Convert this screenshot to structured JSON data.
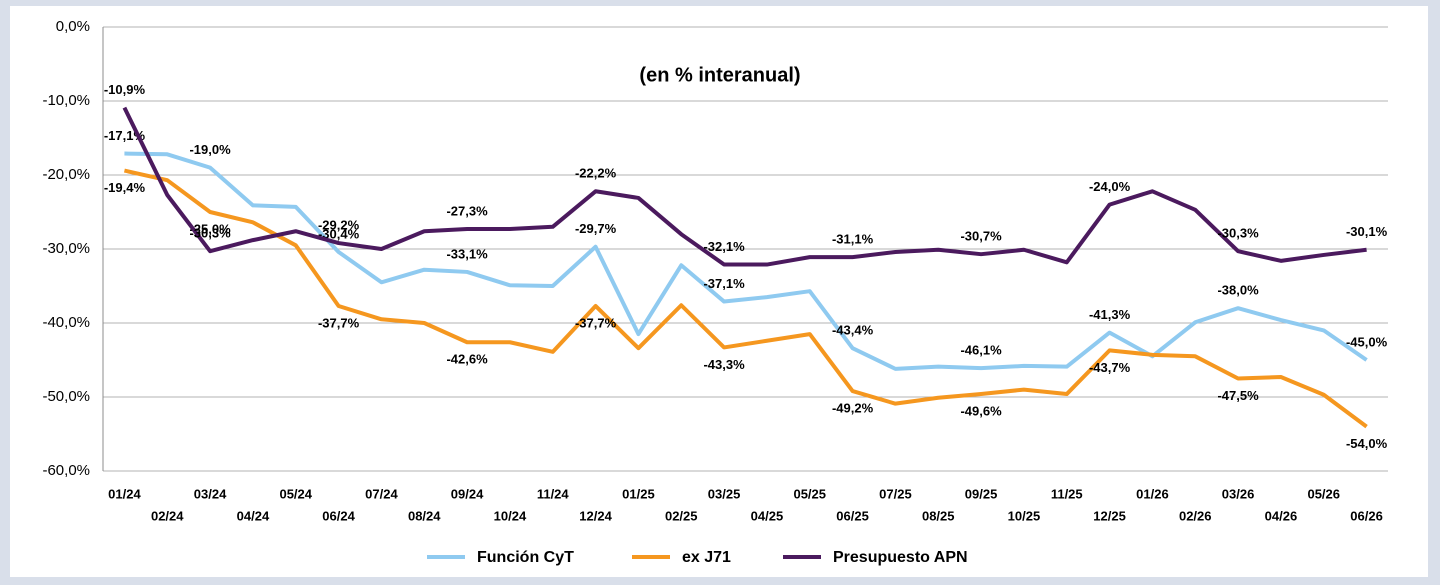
{
  "chart_data": {
    "type": "line",
    "title": "(en % interanual)",
    "categories": [
      "01/24",
      "02/24",
      "03/24",
      "04/24",
      "05/24",
      "06/24",
      "07/24",
      "08/24",
      "09/24",
      "10/24",
      "11/24",
      "12/24",
      "01/25",
      "02/25",
      "03/25",
      "04/25",
      "05/25",
      "06/25",
      "07/25",
      "08/25",
      "09/25",
      "10/25",
      "11/25",
      "12/25",
      "01/26",
      "02/26",
      "03/26",
      "04/26",
      "05/26",
      "06/26"
    ],
    "series": [
      {
        "name": "Función CyT",
        "color": "#8fcaf0",
        "values": [
          -17.1,
          -17.2,
          -19.0,
          -24.1,
          -24.3,
          -30.4,
          -34.5,
          -32.8,
          -33.1,
          -34.9,
          -35.0,
          -29.7,
          -41.5,
          -32.2,
          -37.1,
          -36.5,
          -35.7,
          -43.4,
          -46.2,
          -45.9,
          -46.1,
          -45.8,
          -45.9,
          -41.3,
          -44.5,
          -39.9,
          -38.0,
          -39.6,
          -41.0,
          -45.0
        ],
        "value_labels": [
          "-17,1%",
          null,
          "-19,0%",
          null,
          null,
          "-30,4%",
          null,
          null,
          "-33,1%",
          null,
          null,
          "-29,7%",
          null,
          null,
          "-37,1%",
          null,
          null,
          "-43,4%",
          null,
          null,
          "-46,1%",
          null,
          null,
          "-41,3%",
          null,
          null,
          "-38,0%",
          null,
          null,
          "-45,0%"
        ]
      },
      {
        "name": "ex J71",
        "color": "#f5971f",
        "values": [
          -19.4,
          -20.7,
          -25.0,
          -26.4,
          -29.5,
          -37.7,
          -39.5,
          -40.0,
          -42.6,
          -42.6,
          -43.9,
          -37.7,
          -43.4,
          -37.6,
          -43.3,
          -42.4,
          -41.5,
          -49.2,
          -50.9,
          -50.1,
          -49.6,
          -49.0,
          -49.6,
          -43.7,
          -44.3,
          -44.5,
          -47.5,
          -47.3,
          -49.7,
          -54.0
        ],
        "value_labels": [
          "-19,4%",
          null,
          "-25,0%",
          null,
          null,
          "-37,7%",
          null,
          null,
          "-42,6%",
          null,
          null,
          "-37,7%",
          null,
          null,
          "-43,3%",
          null,
          null,
          "-49,2%",
          null,
          null,
          "-49,6%",
          null,
          null,
          "-43,7%",
          null,
          null,
          "-47,5%",
          null,
          null,
          "-54,0%"
        ]
      },
      {
        "name": "Presupuesto APN",
        "color": "#4b1a5e",
        "values": [
          -10.9,
          -22.7,
          -30.3,
          -28.8,
          -27.6,
          -29.2,
          -30.0,
          -27.6,
          -27.3,
          -27.3,
          -27.0,
          -22.2,
          -23.1,
          -28.0,
          -32.1,
          -32.1,
          -31.1,
          -31.1,
          -30.4,
          -30.1,
          -30.7,
          -30.1,
          -31.8,
          -24.0,
          -22.2,
          -24.7,
          -30.3,
          -31.6,
          -30.8,
          -30.1
        ],
        "value_labels": [
          "-10,9%",
          null,
          "-30,3%",
          null,
          null,
          "-29,2%",
          null,
          null,
          "-27,3%",
          null,
          null,
          "-22,2%",
          null,
          null,
          "-32,1%",
          null,
          null,
          "-31,1%",
          null,
          null,
          "-30,7%",
          null,
          null,
          "-24,0%",
          null,
          null,
          "-30,3%",
          null,
          null,
          "-30,1%"
        ]
      }
    ],
    "ylim": [
      -60,
      0
    ],
    "yticks": [
      {
        "value": -60,
        "label": "-60,0%"
      },
      {
        "value": -50,
        "label": "-50,0%"
      },
      {
        "value": -40,
        "label": "-40,0%"
      },
      {
        "value": -30,
        "label": "-30,0%"
      },
      {
        "value": -20,
        "label": "-20,0%"
      },
      {
        "value": -10,
        "label": "-10,0%"
      },
      {
        "value": 0,
        "label": "0,0%"
      }
    ],
    "grid": true,
    "legend": "bottom"
  }
}
